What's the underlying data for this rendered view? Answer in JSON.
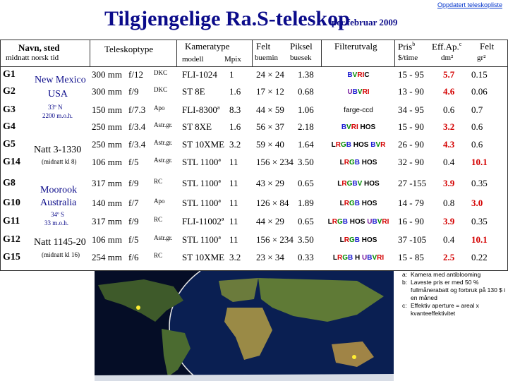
{
  "top_link": "Oppdatert teleskopliste",
  "title": "Tilgjengelige Ra.S-teleskop",
  "subtitle": "per februar 2009",
  "headers": {
    "name": "Navn,   sted",
    "name_sub": "midnatt norsk tid",
    "telescope": "Teleskoptype",
    "camera": "Kameratype",
    "camera_model": "modell",
    "camera_mpix": "Mpix",
    "field": "Felt",
    "field_unit": "buemin",
    "pixel": "Piksel",
    "pixel_unit": "buesek",
    "filters": "Filterutvalg",
    "price": "Pris",
    "price_note": "b",
    "price_unit": "$/time",
    "eff": "Eff.Ap.",
    "eff_note": "c",
    "eff_unit": "dm²",
    "fov": "Felt",
    "fov_unit": "gr²"
  },
  "sites": [
    {
      "name": "New Mexico",
      "name2": "USA",
      "coords": "33º N",
      "time": "2200 m.o.h."
    },
    {
      "name": "Natt 3-1330",
      "sub": "(midnatt kl 8)"
    },
    {
      "name": "Moorook",
      "name2": "Australia",
      "coords": "34º S",
      "time": "33 m.o.h."
    },
    {
      "name": "Natt 1145-20",
      "sub": "(midnatt kl 16)"
    }
  ],
  "rows": [
    {
      "id": "G1",
      "aperture": "300 mm",
      "ratio": "f/12",
      "type": "DKC",
      "camera": "FLI-1024",
      "mpix": "1",
      "field": "24 × 24",
      "pixel": "1.38",
      "filters": [
        {
          "t": "B",
          "c": "blue"
        },
        {
          "t": "V",
          "c": "green"
        },
        {
          "t": "R",
          "c": "red"
        },
        {
          "t": "I",
          "c": "red"
        },
        {
          "t": "C",
          "c": "black"
        }
      ],
      "price": "15 -  95",
      "eff": "5.7",
      "eff_red": true,
      "fov": "0.15",
      "fov_red": false
    },
    {
      "id": "G2",
      "aperture": "300 mm",
      "ratio": "f/9",
      "type": "DKC",
      "camera": "ST 8E",
      "mpix": "1.6",
      "field": "17 × 12",
      "pixel": "0.68",
      "filters": [
        {
          "t": "U",
          "c": "violet"
        },
        {
          "t": "B",
          "c": "blue"
        },
        {
          "t": "V",
          "c": "green"
        },
        {
          "t": "R",
          "c": "red"
        },
        {
          "t": "I",
          "c": "red"
        }
      ],
      "price": "13 -  90",
      "eff": "4.6",
      "eff_red": true,
      "fov": "0.06",
      "fov_red": false
    },
    {
      "id": "G3",
      "aperture": "150 mm",
      "ratio": "f/7.3",
      "type": "Apo",
      "camera": "FLI-8300ª",
      "mpix": "8.3",
      "field": "44 × 59",
      "pixel": "1.06",
      "filters": [
        {
          "t": "farge-ccd",
          "c": "plain"
        }
      ],
      "price": "34 -  95",
      "eff": "0.6",
      "eff_red": false,
      "fov": "0.7",
      "fov_red": false
    },
    {
      "id": "G4",
      "aperture": "250 mm",
      "ratio": "f/3.4",
      "type": "Astr.gr.",
      "camera": "ST 8XE",
      "mpix": "1.6",
      "field": "56 × 37",
      "pixel": "2.18",
      "filters": [
        {
          "t": "B",
          "c": "blue"
        },
        {
          "t": "V",
          "c": "green"
        },
        {
          "t": "R",
          "c": "red"
        },
        {
          "t": "I",
          "c": "red"
        },
        {
          "t": " HOS",
          "c": "black"
        }
      ],
      "price": "15 -  90",
      "eff": "3.2",
      "eff_red": true,
      "fov": "0.6",
      "fov_red": false
    },
    {
      "id": "G5",
      "aperture": "250 mm",
      "ratio": "f/3.4",
      "type": "Astr.gr.",
      "camera": "ST 10XME",
      "mpix": "3.2",
      "field": "59 × 40",
      "pixel": "1.64",
      "filters": [
        {
          "t": "L",
          "c": "black"
        },
        {
          "t": "R",
          "c": "red"
        },
        {
          "t": "G",
          "c": "green"
        },
        {
          "t": "B",
          "c": "blue"
        },
        {
          "t": " HOS ",
          "c": "black"
        },
        {
          "t": "B",
          "c": "blue"
        },
        {
          "t": "V",
          "c": "green"
        },
        {
          "t": "R",
          "c": "red"
        }
      ],
      "price": "26 -  90",
      "eff": "4.3",
      "eff_red": true,
      "fov": "0.6",
      "fov_red": false
    },
    {
      "id": "G14",
      "aperture": "106 mm",
      "ratio": "f/5",
      "type": "Astr.gr.",
      "camera": "STL 1100ª",
      "mpix": "11",
      "field": "156 × 234",
      "pixel": "3.50",
      "filters": [
        {
          "t": "L",
          "c": "black"
        },
        {
          "t": "R",
          "c": "red"
        },
        {
          "t": "G",
          "c": "green"
        },
        {
          "t": "B",
          "c": "blue"
        },
        {
          "t": " HOS",
          "c": "black"
        }
      ],
      "price": "32 -  90",
      "eff": "0.4",
      "eff_red": false,
      "fov": "10.1",
      "fov_red": true
    },
    {
      "id": "G8",
      "aperture": "317 mm",
      "ratio": "f/9",
      "type": "RC",
      "camera": "STL 1100ª",
      "mpix": "11",
      "field": "43 × 29",
      "pixel": "0.65",
      "filters": [
        {
          "t": "L",
          "c": "black"
        },
        {
          "t": "R",
          "c": "red"
        },
        {
          "t": "G",
          "c": "green"
        },
        {
          "t": "B",
          "c": "blue"
        },
        {
          "t": "V",
          "c": "green"
        },
        {
          "t": " HOS",
          "c": "black"
        }
      ],
      "price": "27 -155",
      "eff": "3.9",
      "eff_red": true,
      "fov": "0.35",
      "fov_red": false
    },
    {
      "id": "G10",
      "aperture": "140 mm",
      "ratio": "f/7",
      "type": "Apo",
      "camera": "STL 1100ª",
      "mpix": "11",
      "field": "126 × 84",
      "pixel": "1.89",
      "filters": [
        {
          "t": "L",
          "c": "black"
        },
        {
          "t": "R",
          "c": "red"
        },
        {
          "t": "G",
          "c": "green"
        },
        {
          "t": "B",
          "c": "blue"
        },
        {
          "t": " HOS",
          "c": "black"
        }
      ],
      "price": "14 -  79",
      "eff": "0.8",
      "eff_red": false,
      "fov": "3.0",
      "fov_red": true
    },
    {
      "id": "G11",
      "aperture": "317 mm",
      "ratio": "f/9",
      "type": "RC",
      "camera": "FLI-11002ª",
      "mpix": "11",
      "field": "44 × 29",
      "pixel": "0.65",
      "filters": [
        {
          "t": "L",
          "c": "black"
        },
        {
          "t": "R",
          "c": "red"
        },
        {
          "t": "G",
          "c": "green"
        },
        {
          "t": "B",
          "c": "blue"
        },
        {
          "t": " HOS ",
          "c": "black"
        },
        {
          "t": "U",
          "c": "violet"
        },
        {
          "t": "B",
          "c": "blue"
        },
        {
          "t": "V",
          "c": "green"
        },
        {
          "t": "R",
          "c": "red"
        },
        {
          "t": "I",
          "c": "red"
        }
      ],
      "price": "16 -  90",
      "eff": "3.9",
      "eff_red": true,
      "fov": "0.35",
      "fov_red": false
    },
    {
      "id": "G12",
      "aperture": "106 mm",
      "ratio": "f/5",
      "type": "Astr.gr.",
      "camera": "STL 1100ª",
      "mpix": "11",
      "field": "156 × 234",
      "pixel": "3.50",
      "filters": [
        {
          "t": "L",
          "c": "black"
        },
        {
          "t": "R",
          "c": "red"
        },
        {
          "t": "G",
          "c": "green"
        },
        {
          "t": "B",
          "c": "blue"
        },
        {
          "t": " HOS",
          "c": "black"
        }
      ],
      "price": "37 -105",
      "eff": "0.4",
      "eff_red": false,
      "fov": "10.1",
      "fov_red": true
    },
    {
      "id": "G15",
      "aperture": "254 mm",
      "ratio": "f/6",
      "type": "RC",
      "camera": "ST 10XME",
      "mpix": "3.2",
      "field": "23 × 34",
      "pixel": "0.33",
      "filters": [
        {
          "t": "L",
          "c": "black"
        },
        {
          "t": "R",
          "c": "red"
        },
        {
          "t": "G",
          "c": "green"
        },
        {
          "t": "B",
          "c": "blue"
        },
        {
          "t": " H ",
          "c": "black"
        },
        {
          "t": "U",
          "c": "violet"
        },
        {
          "t": "B",
          "c": "blue"
        },
        {
          "t": "V",
          "c": "green"
        },
        {
          "t": "R",
          "c": "red"
        },
        {
          "t": "I",
          "c": "red"
        }
      ],
      "price": "15 -  85",
      "eff": "2.5",
      "eff_red": true,
      "fov": "0.22",
      "fov_red": false
    }
  ],
  "notes": [
    {
      "k": "a:",
      "t": "Kamera med antiblooming"
    },
    {
      "k": "b:",
      "t": "Laveste pris er med 50 % fullmånerabatt og forbruk på 130 $ i en måned"
    },
    {
      "k": "c:",
      "t": "Effektiv aperture = areal x kvanteeffektivitet"
    }
  ],
  "colors": {
    "title": "#0b0b8a",
    "accent_red": "#d40000",
    "filter_blue": "#1b1bd0",
    "filter_green": "#008a00",
    "filter_violet": "#7a1ea0"
  }
}
